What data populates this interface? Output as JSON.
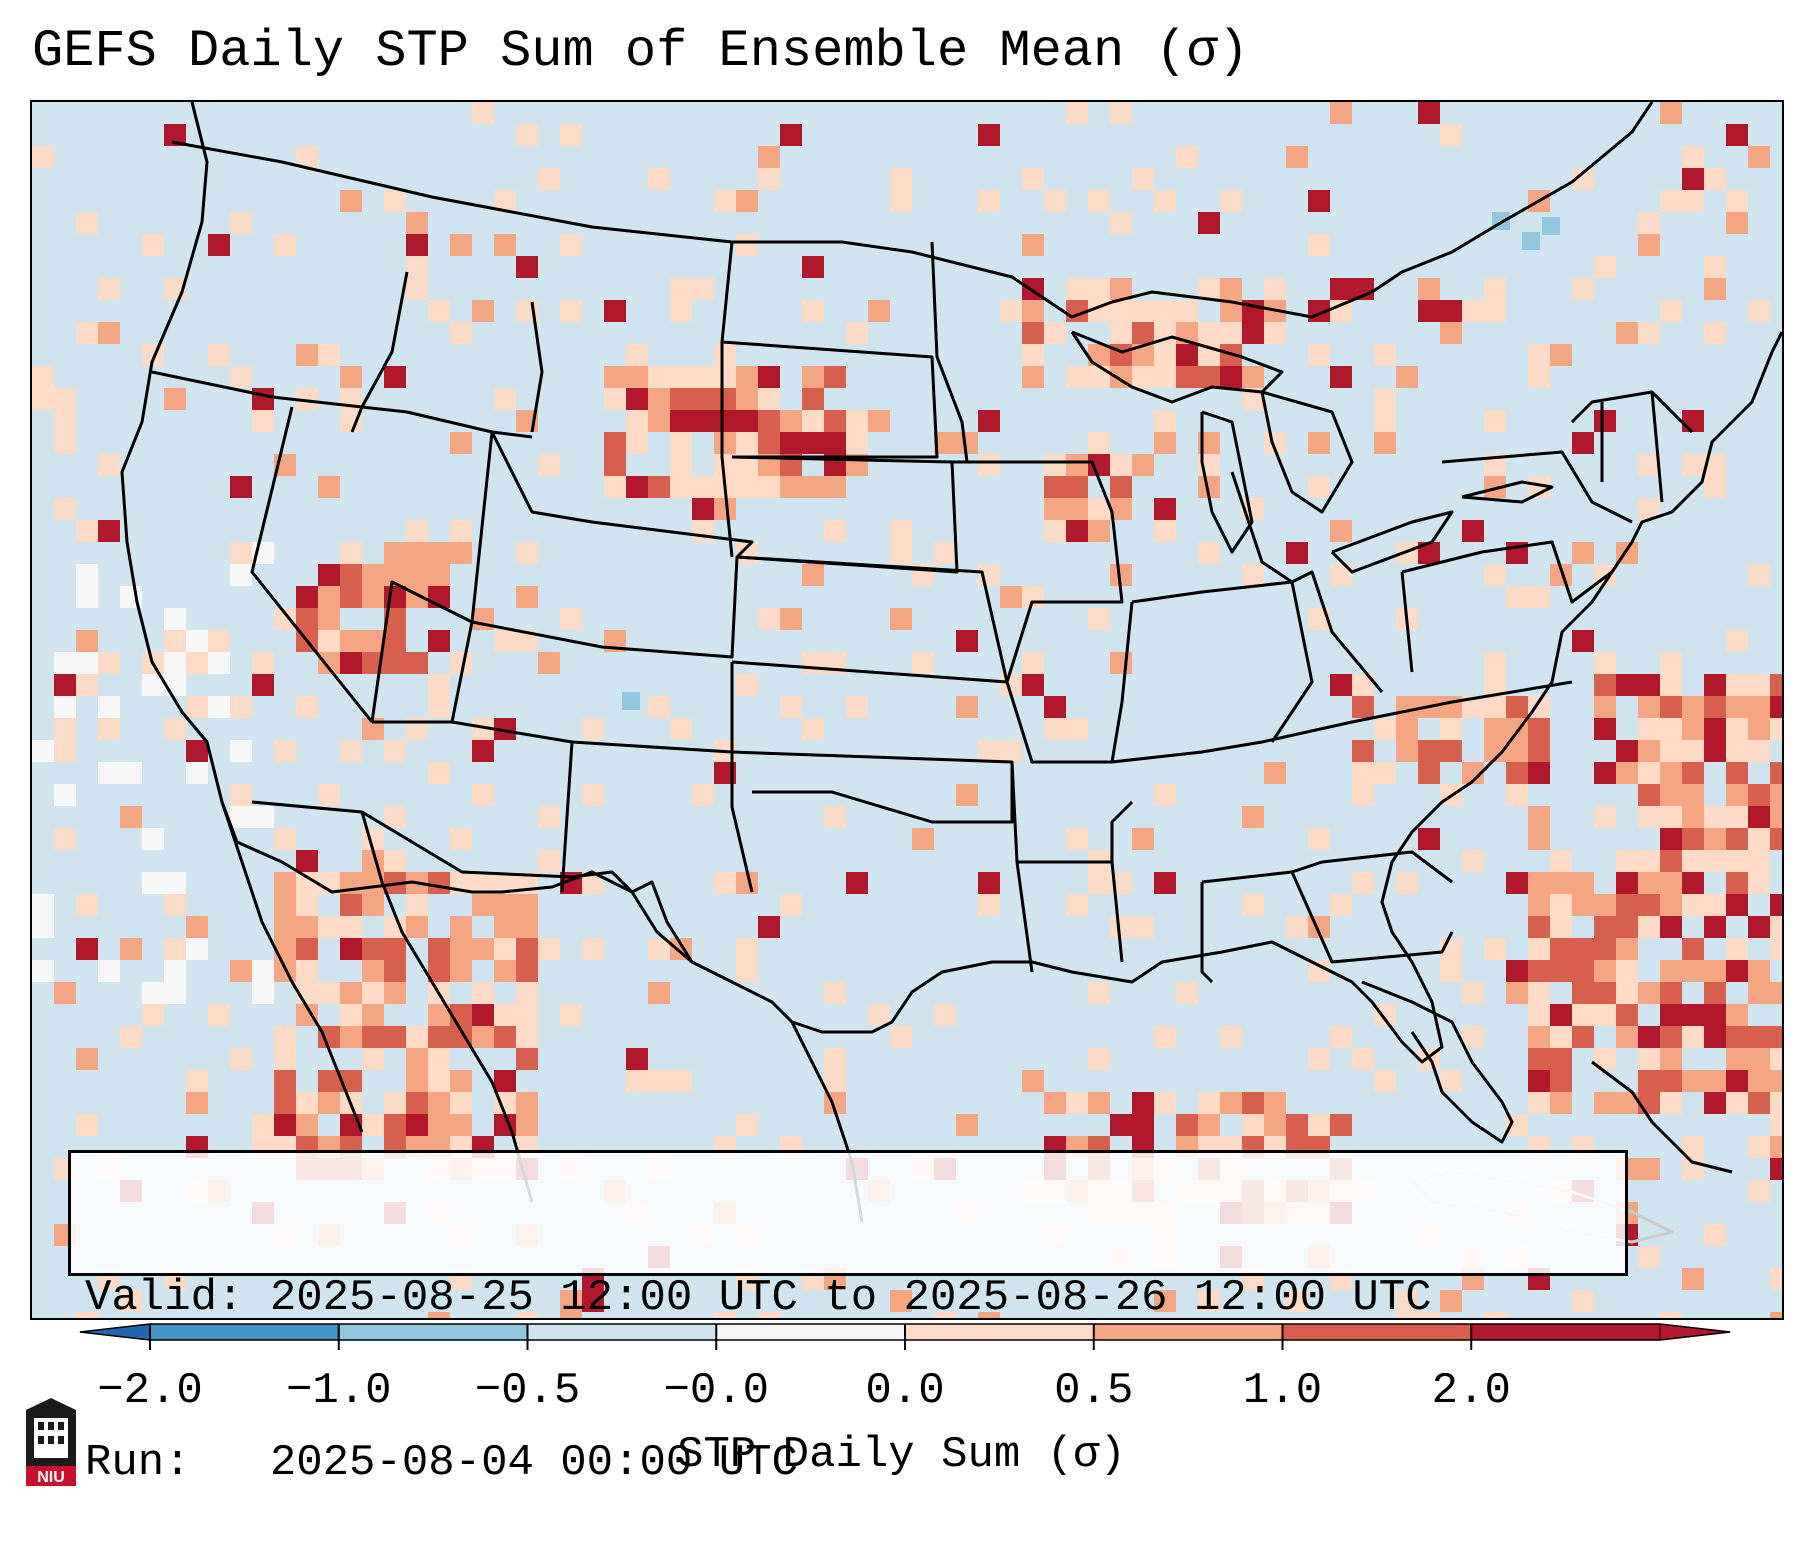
{
  "title": "GEFS Daily STP Sum of Ensemble Mean (σ)",
  "info": {
    "valid": "Valid: 2025-08-25 12:00 UTC to 2025-08-26 12:00 UTC",
    "run": "Run:   2025-08-04 00:00 UTC"
  },
  "colorbar": {
    "label": "STP Daily Sum (σ)",
    "ticks": [
      "−2.0",
      "−1.0",
      "−0.5",
      "−0.0",
      "0.0",
      "0.5",
      "1.0",
      "2.0"
    ],
    "bin_colors": [
      "#4393c3",
      "#92c5de",
      "#d1e5f0",
      "#f7f7f7",
      "#fddbc7",
      "#f4a582",
      "#d6604d",
      "#b2182b"
    ],
    "extend_low_color": "#2166ac",
    "extend_high_color": "#b2182b"
  },
  "map": {
    "background_color": "#d1e5f0",
    "border_color": "#000000",
    "region": "CONUS"
  },
  "logo_text": "NIU"
}
